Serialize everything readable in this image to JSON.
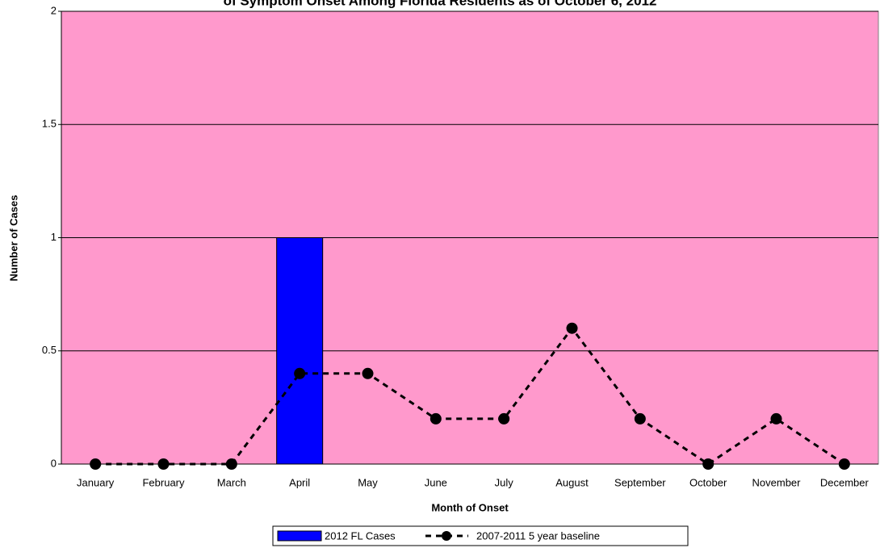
{
  "chart_data": {
    "type": "bar",
    "title": "of Symptom Onset Among Florida Residents as of October 6, 2012",
    "x_label": "Month of Onset",
    "y_label": "Number of Cases",
    "categories": [
      "January",
      "February",
      "March",
      "April",
      "May",
      "June",
      "July",
      "August",
      "September",
      "October",
      "November",
      "December"
    ],
    "series": [
      {
        "name": "2012 FL Cases",
        "type": "bar",
        "color": "#0000ff",
        "values": [
          0,
          0,
          0,
          1,
          0,
          0,
          0,
          0,
          0,
          0,
          0,
          0
        ]
      },
      {
        "name": "2007-2011 5 year baseline",
        "type": "line",
        "color": "#000000",
        "values": [
          0,
          0,
          0,
          0.4,
          0.4,
          0.2,
          0.2,
          0.6,
          0.2,
          0,
          0.2,
          0
        ]
      }
    ],
    "ylim": [
      0,
      2
    ],
    "yticks": [
      0,
      0.5,
      1,
      1.5,
      2
    ],
    "grid": true,
    "plot_background": "#ff99cc",
    "legend": "bottom"
  }
}
